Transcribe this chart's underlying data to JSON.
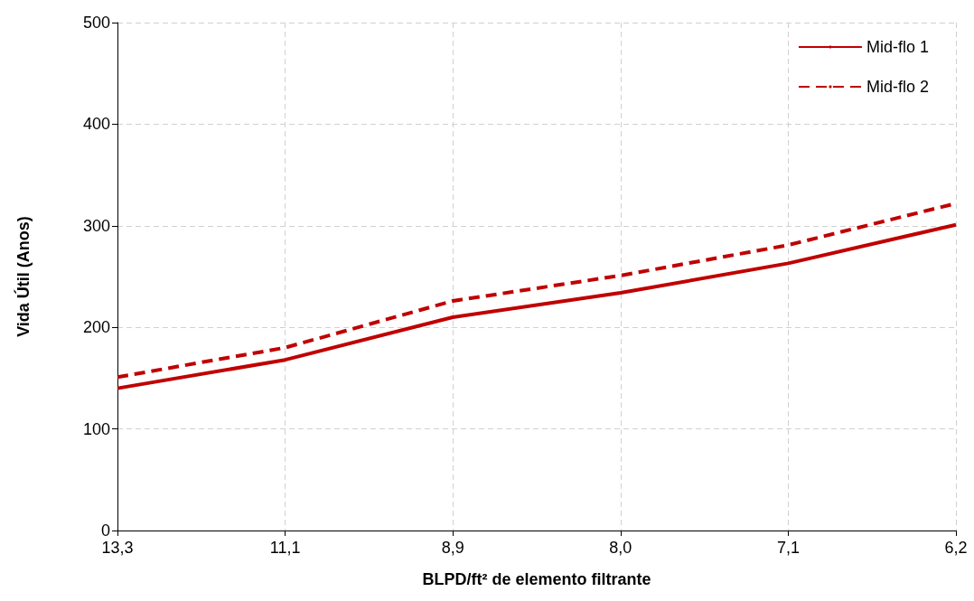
{
  "chart_data": {
    "type": "line",
    "xlabel": "BLPD/ft² de elemento filtrante",
    "ylabel": "Vida Útil (Anos)",
    "categories": [
      "13,3",
      "11,1",
      "8,9",
      "8,0",
      "7,1",
      "6,2"
    ],
    "series": [
      {
        "name": "Mid-flo 1",
        "color": "#c00000",
        "line_style": "solid",
        "values": [
          140,
          168,
          210,
          234,
          263,
          301
        ]
      },
      {
        "name": "Mid-flo 2",
        "color": "#c00000",
        "line_style": "dashed",
        "values": [
          151,
          180,
          226,
          251,
          281,
          322
        ]
      }
    ],
    "ylim": [
      0,
      500
    ],
    "yticks": [
      0,
      100,
      200,
      300,
      400,
      500
    ],
    "grid": true,
    "legend": "top right",
    "marker": "none"
  }
}
